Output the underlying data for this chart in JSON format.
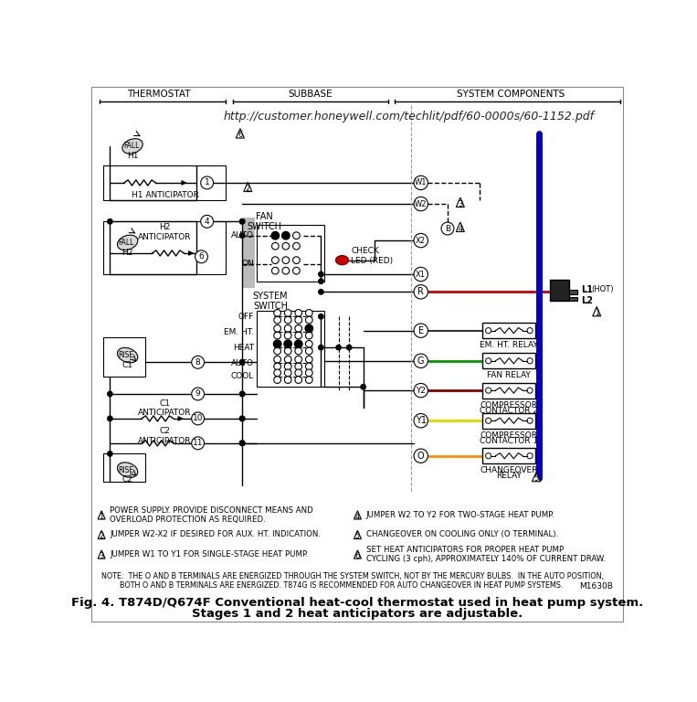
{
  "title": "Fig. 4. T874D/Q674F Conventional heat-cool thermostat used in heat pump system.\nStages 1 and 2 heat anticipators are adjustable.",
  "url": "http://customer.honeywell.com/techlit/pdf/60-0000s/60-1152.pdf",
  "bg_color": "#ffffff",
  "fig_width": 7.63,
  "fig_height": 7.68,
  "note_text": "NOTE:  THE O AND B TERMINALS ARE ENERGIZED THROUGH THE SYSTEM SWITCH, NOT BY THE MERCURY BULBS.  IN THE AUTO POSITION,\n        BOTH O AND B TERMINALS ARE ENERGIZED. T874G IS RECOMMENDED FOR AUTO CHANGEOVER IN HEAT PUMP SYSTEMS.",
  "model_id": "M1630B",
  "wire_colors": {
    "R": "#cc0000",
    "G": "#009900",
    "Y2": "#8B0000",
    "Y1": "#dddd00",
    "O": "#ff8c00",
    "blue": "#0000cc"
  }
}
